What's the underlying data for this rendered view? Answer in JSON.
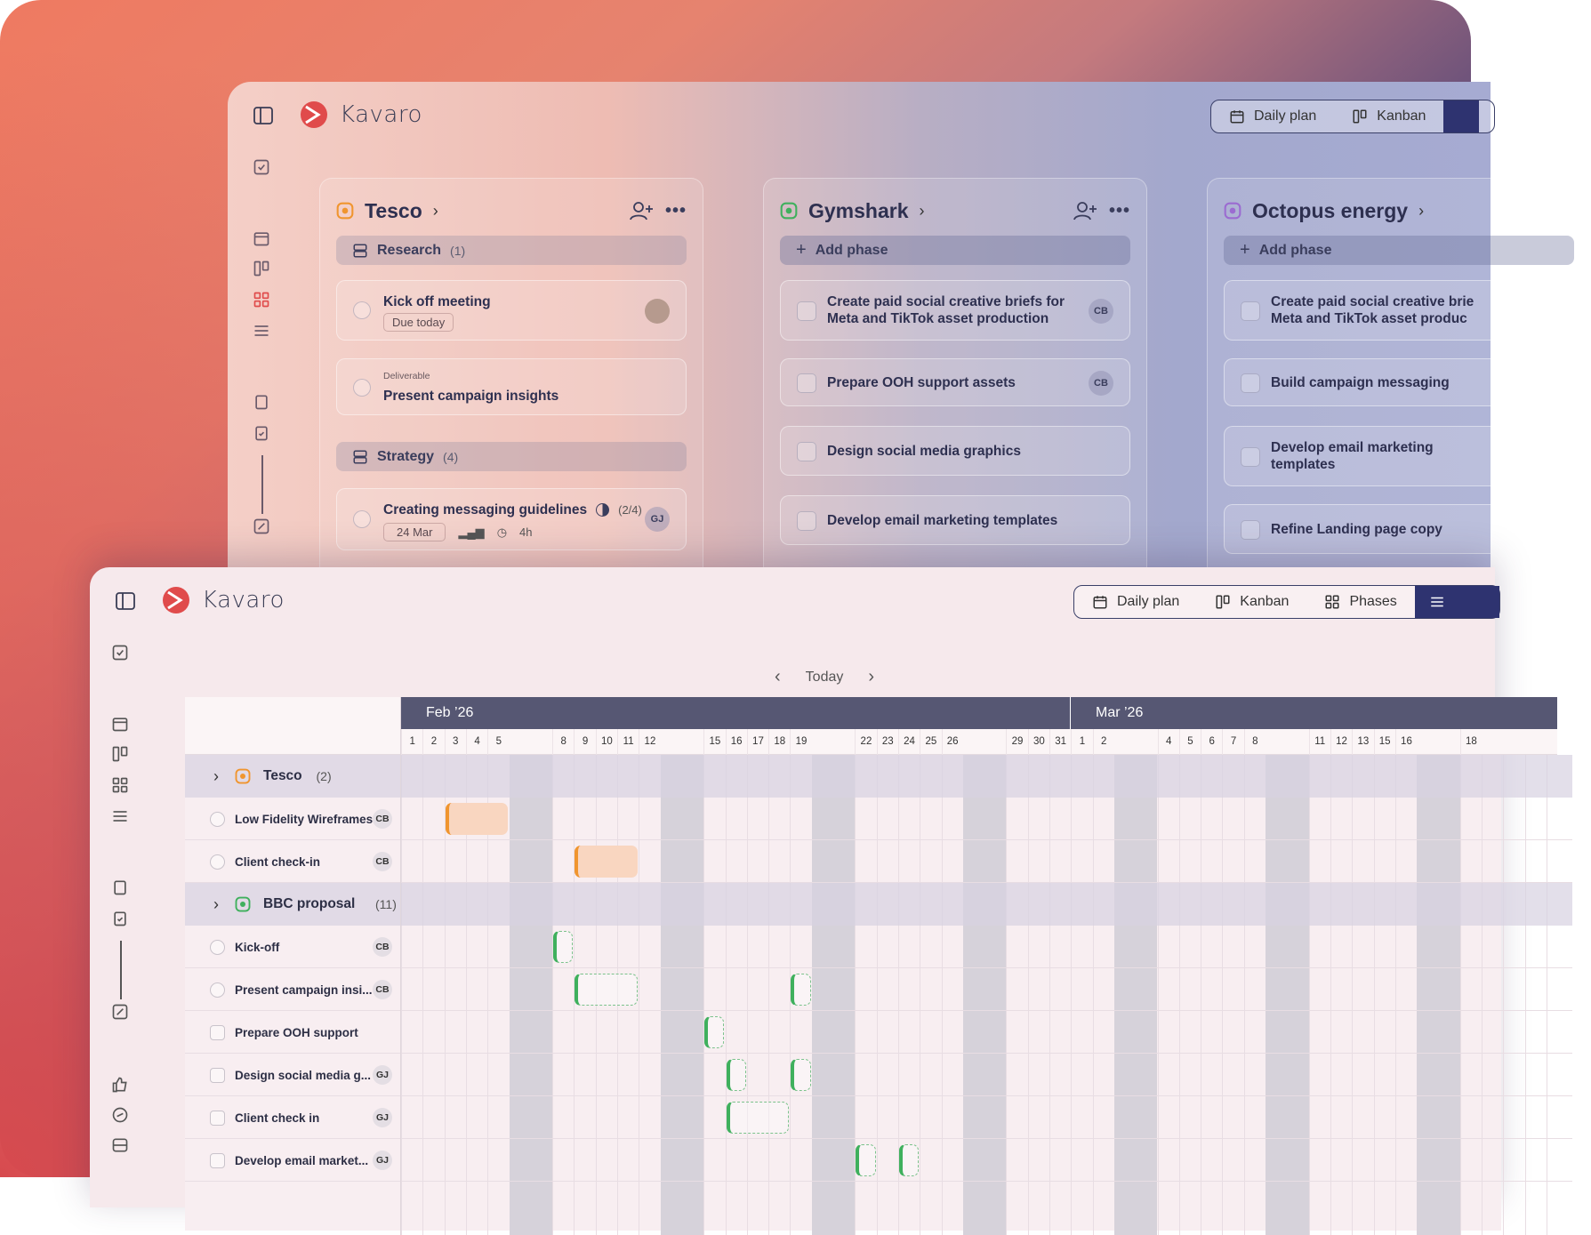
{
  "brand": {
    "name": "Kavaro",
    "accent": "#e04b4b"
  },
  "back_window": {
    "view_switcher": [
      {
        "label": "Daily plan",
        "icon": "calendar-icon"
      },
      {
        "label": "Kanban",
        "icon": "kanban-icon"
      }
    ],
    "columns": [
      {
        "name": "Tesco",
        "icon_color": "#f0952f",
        "phases": [
          {
            "label": "Research",
            "count": "(1)"
          },
          {
            "label": "Strategy",
            "count": "(4)"
          }
        ],
        "cards": [
          {
            "title": "Kick off meeting",
            "chip": "Due today"
          },
          {
            "eyebrow": "Deliverable",
            "title": "Present campaign insights"
          },
          {
            "title": "Creating messaging guidelines",
            "progress": "(2/4)",
            "date": "24 Mar",
            "time": "4h",
            "assignee": "GJ"
          }
        ]
      },
      {
        "name": "Gymshark",
        "icon_color": "#3fb05d",
        "add_phase": "Add phase",
        "cards": [
          {
            "title": "Create paid social creative briefs for Meta and TikTok asset production",
            "assignee": "CB"
          },
          {
            "title": "Prepare OOH support assets",
            "assignee": "CB"
          },
          {
            "title": "Design social media graphics"
          },
          {
            "title": "Develop email marketing templates"
          }
        ]
      },
      {
        "name": "Octopus energy",
        "icon_color": "#9b6bd1",
        "add_phase": "Add phase",
        "cards": [
          {
            "title": "Create paid social creative brie",
            "title2": "Meta and TikTok asset produc"
          },
          {
            "title": "Build campaign messaging"
          },
          {
            "title": "Develop email marketing templates"
          },
          {
            "title": "Refine Landing page copy"
          }
        ]
      }
    ]
  },
  "front_window": {
    "view_switcher": [
      {
        "label": "Daily plan",
        "icon": "calendar-icon"
      },
      {
        "label": "Kanban",
        "icon": "kanban-icon"
      },
      {
        "label": "Phases",
        "icon": "grid-icon"
      }
    ],
    "nav": {
      "today": "Today"
    },
    "months": [
      {
        "label": "Feb ’26"
      },
      {
        "label": "Mar ’26"
      }
    ],
    "days": [
      "1",
      "2",
      "3",
      "4",
      "5",
      "8",
      "9",
      "10",
      "11",
      "12",
      "15",
      "16",
      "17",
      "18",
      "19",
      "22",
      "23",
      "24",
      "25",
      "26",
      "29",
      "30",
      "31",
      "1",
      "2",
      "4",
      "5",
      "6",
      "7",
      "8",
      "11",
      "12",
      "13",
      "15",
      "16",
      "18"
    ],
    "groups": [
      {
        "name": "Tesco",
        "count": "(2)",
        "icon_color": "#f0952f",
        "tasks": [
          {
            "name": "Low Fidelity Wireframes",
            "assignee": "CB"
          },
          {
            "name": "Client check-in",
            "assignee": "CB"
          }
        ]
      },
      {
        "name": "BBC proposal",
        "count": "(11)",
        "icon_color": "#3fb05d",
        "tasks": [
          {
            "name": "Kick-off",
            "assignee": "CB"
          },
          {
            "name": "Present campaign insi...",
            "assignee": "CB"
          },
          {
            "name": "Prepare OOH support",
            "assignee": ""
          },
          {
            "name": "Design social media g...",
            "assignee": "GJ"
          },
          {
            "name": "Client check in",
            "assignee": "GJ"
          },
          {
            "name": "Develop email market...",
            "assignee": "GJ"
          }
        ]
      }
    ]
  }
}
